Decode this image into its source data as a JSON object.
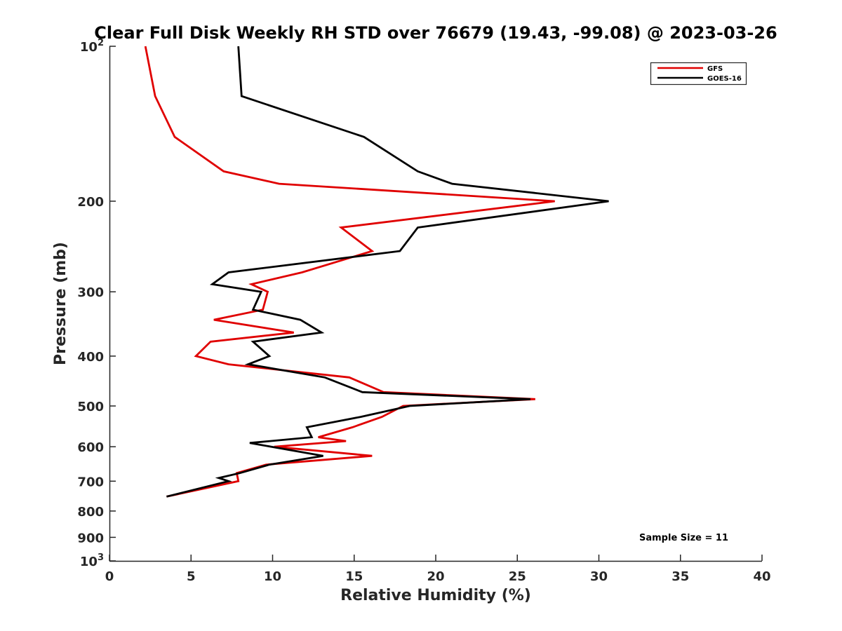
{
  "chart_data": {
    "type": "line",
    "title": "Clear Full Disk Weekly RH STD over 76679 (19.43, -99.08) @ 2023-03-26",
    "xlabel": "Relative Humidity (%)",
    "ylabel": "Pressure (mb)",
    "xlim": [
      0,
      40
    ],
    "ylim": [
      100,
      1000
    ],
    "y_scale": "log",
    "y_reversed": true,
    "grid": false,
    "legend_position": "top-right",
    "x_ticks": [
      0,
      5,
      10,
      15,
      20,
      25,
      30,
      35,
      40
    ],
    "y_ticks": [
      {
        "value": 100,
        "base": "10",
        "exp": "2"
      },
      {
        "value": 200,
        "label": "200"
      },
      {
        "value": 300,
        "label": "300"
      },
      {
        "value": 400,
        "label": "400"
      },
      {
        "value": 500,
        "label": "500"
      },
      {
        "value": 600,
        "label": "600"
      },
      {
        "value": 700,
        "label": "700"
      },
      {
        "value": 800,
        "label": "800"
      },
      {
        "value": 900,
        "label": "900"
      },
      {
        "value": 1000,
        "base": "10",
        "exp": "3"
      }
    ],
    "series": [
      {
        "name": "GFS",
        "color": "#e00000",
        "points": [
          [
            2.2,
            100
          ],
          [
            2.8,
            125
          ],
          [
            4.0,
            150
          ],
          [
            7.0,
            175
          ],
          [
            10.4,
            185
          ],
          [
            27.3,
            200
          ],
          [
            14.2,
            225
          ],
          [
            16.1,
            250
          ],
          [
            11.8,
            275
          ],
          [
            8.7,
            290
          ],
          [
            9.7,
            300
          ],
          [
            9.4,
            325
          ],
          [
            6.4,
            340
          ],
          [
            11.3,
            360
          ],
          [
            6.2,
            375
          ],
          [
            5.3,
            400
          ],
          [
            7.3,
            415
          ],
          [
            14.7,
            440
          ],
          [
            16.8,
            470
          ],
          [
            26.1,
            485
          ],
          [
            18.0,
            500
          ],
          [
            16.7,
            525
          ],
          [
            14.9,
            550
          ],
          [
            12.8,
            575
          ],
          [
            14.5,
            585
          ],
          [
            10.1,
            600
          ],
          [
            16.1,
            625
          ],
          [
            9.6,
            650
          ],
          [
            7.8,
            675
          ],
          [
            7.9,
            700
          ],
          [
            3.5,
            750
          ]
        ]
      },
      {
        "name": "GOES-16",
        "color": "#000000",
        "points": [
          [
            7.9,
            100
          ],
          [
            8.1,
            125
          ],
          [
            15.6,
            150
          ],
          [
            18.9,
            175
          ],
          [
            21.0,
            185
          ],
          [
            30.6,
            200
          ],
          [
            18.9,
            225
          ],
          [
            17.8,
            250
          ],
          [
            7.3,
            275
          ],
          [
            6.3,
            290
          ],
          [
            9.3,
            300
          ],
          [
            8.8,
            325
          ],
          [
            11.7,
            340
          ],
          [
            13.0,
            360
          ],
          [
            8.8,
            375
          ],
          [
            9.8,
            400
          ],
          [
            8.5,
            415
          ],
          [
            13.2,
            440
          ],
          [
            15.5,
            470
          ],
          [
            25.8,
            485
          ],
          [
            18.4,
            500
          ],
          [
            15.4,
            525
          ],
          [
            12.1,
            550
          ],
          [
            12.4,
            575
          ],
          [
            8.6,
            590
          ],
          [
            13.1,
            625
          ],
          [
            9.8,
            650
          ],
          [
            8.0,
            675
          ],
          [
            6.7,
            690
          ],
          [
            7.3,
            700
          ],
          [
            3.5,
            750
          ]
        ]
      }
    ],
    "annotations": [
      "Sample Size = 11"
    ]
  }
}
